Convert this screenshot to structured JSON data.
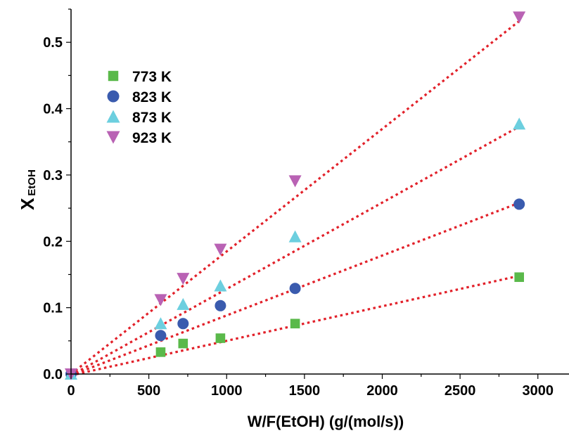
{
  "chart_data": {
    "type": "scatter",
    "xlabel": "W/F(EtOH) (g/(mol/s))",
    "ylabel_main": "X",
    "ylabel_sub": "EtOH",
    "xlim": [
      0,
      3200
    ],
    "ylim": [
      0,
      0.55
    ],
    "x_ticks": [
      "0",
      "500",
      "1000",
      "1500",
      "2000",
      "2500",
      "3000"
    ],
    "y_ticks": [
      "0.0",
      "0.1",
      "0.2",
      "0.3",
      "0.4",
      "0.5"
    ],
    "grid": false,
    "legend_position": "top-left",
    "series": [
      {
        "name": "773 K",
        "marker": "square",
        "color": "#5ab94a",
        "x": [
          0,
          576,
          720,
          960,
          1440,
          2880
        ],
        "y": [
          0.0,
          0.033,
          0.046,
          0.054,
          0.076,
          0.146
        ],
        "fit": {
          "x": [
            0,
            2880
          ],
          "y": [
            -0.005,
            0.148
          ]
        }
      },
      {
        "name": "823 K",
        "marker": "circle",
        "color": "#3a5bae",
        "x": [
          0,
          576,
          720,
          960,
          1440,
          2880
        ],
        "y": [
          0.0,
          0.058,
          0.076,
          0.103,
          0.129,
          0.256
        ],
        "fit": {
          "x": [
            0,
            2880
          ],
          "y": [
            -0.005,
            0.258
          ]
        }
      },
      {
        "name": "873 K",
        "marker": "triangle-up",
        "color": "#6ccfdf",
        "x": [
          0,
          576,
          720,
          960,
          1440,
          2880
        ],
        "y": [
          0.0,
          0.076,
          0.105,
          0.133,
          0.207,
          0.377
        ],
        "fit": {
          "x": [
            0,
            2880
          ],
          "y": [
            -0.002,
            0.373
          ]
        }
      },
      {
        "name": "923 K",
        "marker": "triangle-down",
        "color": "#b962b4",
        "x": [
          0,
          576,
          720,
          960,
          1440,
          2880
        ],
        "y": [
          0.0,
          0.112,
          0.144,
          0.188,
          0.291,
          0.538
        ],
        "fit": {
          "x": [
            0,
            2880
          ],
          "y": [
            0.0,
            0.532
          ]
        }
      }
    ],
    "fit_line_color": "#e2212a"
  }
}
